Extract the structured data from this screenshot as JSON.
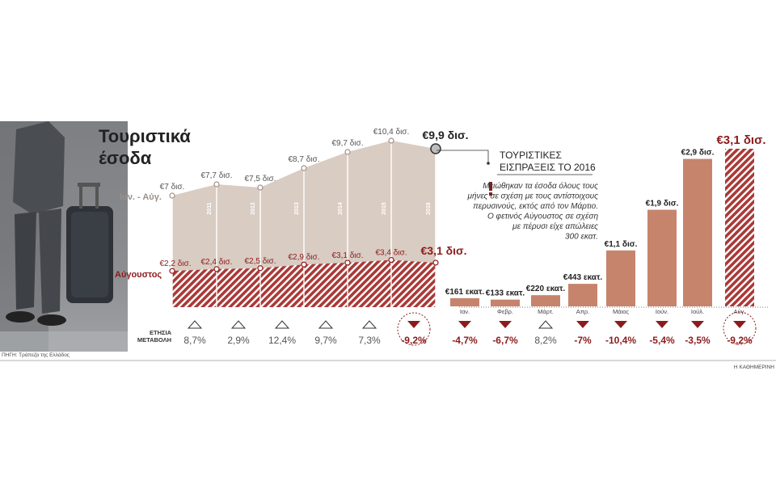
{
  "title_line1": "Τουριστικά",
  "title_line2": "έσοδα",
  "label_jan_aug": "Ιαν. - Αύγ.",
  "label_august": "Αύγουστος",
  "change_label_line1": "ΕΤΗΣΙΑ",
  "change_label_line2": "ΜΕΤΑΒΟΛΗ",
  "source": "ΠΗΓΗ: Τράπεζα της Ελλάδος",
  "publisher": "Η ΚΑΘΗΜΕΡΙΝΗ",
  "note_title_line1": "ΤΟΥΡΙΣΤΙΚΕΣ",
  "note_title_line2": "ΕΙΣΠΡΑΞΕΙΣ ΤΟ 2016",
  "note_text": [
    "Μειώθηκαν τα έσοδα όλους τους",
    "μήνες σε σχέση με τους αντίστοιχους",
    "περυσινούς, εκτός από τον Μάρτιο.",
    "Ο φετινός Αύγουστος σε σχέση",
    "με πέρυσι είχε απώλειες",
    "300 εκατ."
  ],
  "colors": {
    "area_fill": "#d9ccc3",
    "hatch": "#a83a38",
    "bar": "#c6846d",
    "accent": "#8c1c1c",
    "marker_gray": "#bdbdbd",
    "up_marker": "#333333"
  },
  "chart_data": [
    {
      "type": "area",
      "x": [
        "2010",
        "2011",
        "2012",
        "2013",
        "2014",
        "2015",
        "2016"
      ],
      "series": [
        {
          "name": "Ιαν. - Αύγ.",
          "values": [
            7,
            7.7,
            7.5,
            8.7,
            9.7,
            10.4,
            9.9
          ],
          "labels": [
            "€7 δισ.",
            "€7,7 δισ.",
            "€7,5 δισ.",
            "€8,7 δισ.",
            "€9,7 δισ.",
            "€10,4 δισ.",
            "€9,9 δισ."
          ]
        },
        {
          "name": "Αύγουστος",
          "values": [
            2.2,
            2.4,
            2.5,
            2.9,
            3.1,
            3.4,
            3.1
          ],
          "labels": [
            "€2,2 δισ.",
            "€2,4 δισ.",
            "€2,5 δισ.",
            "€2,9 δισ.",
            "€3,1 δισ.",
            "€3,4 δισ.",
            "€3,1 δισ."
          ]
        }
      ],
      "yearly_change": [
        {
          "text": "8,7%",
          "dir": "up"
        },
        {
          "text": "2,9%",
          "dir": "up"
        },
        {
          "text": "12,4%",
          "dir": "up"
        },
        {
          "text": "9,7%",
          "dir": "up"
        },
        {
          "text": "7,3%",
          "dir": "up"
        },
        {
          "text": "-9,2%",
          "dir": "down"
        }
      ]
    },
    {
      "type": "bar",
      "categories": [
        "Ιαν.",
        "Φεβρ.",
        "Μάρτ.",
        "Απρ.",
        "Μάιος",
        "Ιούν.",
        "Ιούλ.",
        "Αύγ."
      ],
      "values": [
        161,
        133,
        220,
        443,
        1100,
        1900,
        2900,
        3100
      ],
      "labels": [
        "€161 εκατ.",
        "€133 εκατ.",
        "€220 εκατ.",
        "€443 εκατ.",
        "€1,1 δισ.",
        "€1,9 δισ.",
        "€2,9 δισ.",
        "€3,1 δισ."
      ],
      "change": [
        {
          "text": "-4,7%",
          "dir": "down"
        },
        {
          "text": "-6,7%",
          "dir": "down"
        },
        {
          "text": "8,2%",
          "dir": "up"
        },
        {
          "text": "-7%",
          "dir": "down"
        },
        {
          "text": "-10,4%",
          "dir": "down"
        },
        {
          "text": "-5,4%",
          "dir": "down"
        },
        {
          "text": "-3,5%",
          "dir": "down"
        },
        {
          "text": "-9,2%",
          "dir": "down"
        }
      ]
    }
  ]
}
